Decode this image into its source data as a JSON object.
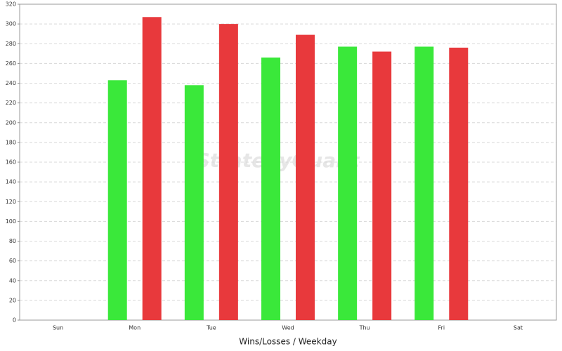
{
  "chart_data": {
    "type": "bar",
    "x_label": "Wins/Losses / Weekday",
    "watermark": "StrategyQuant",
    "categories": [
      "Sun",
      "Mon",
      "Tue",
      "Wed",
      "Thu",
      "Fri",
      "Sat"
    ],
    "series": [
      {
        "color": "#3ae83a",
        "values": [
          0,
          243,
          238,
          266,
          277,
          277,
          0
        ]
      },
      {
        "color": "#e8393c",
        "values": [
          0,
          307,
          300,
          289,
          272,
          276,
          0
        ]
      }
    ],
    "ylim": [
      0,
      320
    ],
    "yticks": [
      0,
      20,
      40,
      60,
      80,
      100,
      120,
      140,
      160,
      180,
      200,
      220,
      240,
      260,
      280,
      300,
      320
    ],
    "grid": true
  }
}
